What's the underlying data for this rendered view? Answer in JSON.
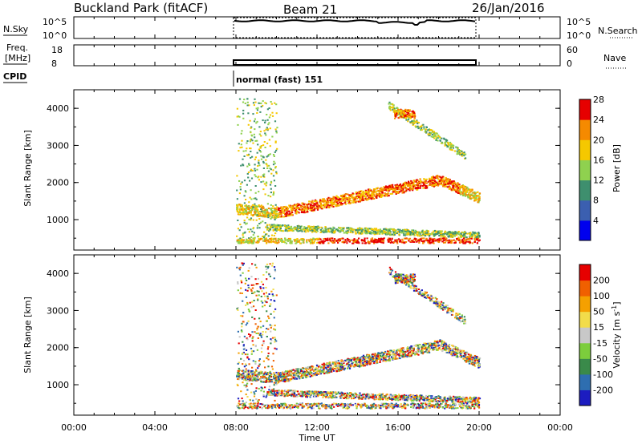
{
  "header": {
    "title_left": "Buckland Park (fitACF)",
    "title_center": "Beam 21",
    "title_right": "26/Jan/2016"
  },
  "panels": {
    "nsky": {
      "label": "N.Sky",
      "ticks_left": [
        "10^5",
        "10^0"
      ],
      "ticks_right": [
        "10^5",
        "10^0"
      ],
      "right_label": "N.Search"
    },
    "freq": {
      "label_line1": "Freq.",
      "label_line2": "[MHz]",
      "ticks_left": [
        "18",
        "8"
      ],
      "ticks_right": [
        "60",
        "0"
      ],
      "right_label": "Nave"
    },
    "cpid": {
      "label": "CPID",
      "value": "normal (fast) 151"
    }
  },
  "chart_data": [
    {
      "type": "heatmap",
      "name": "power",
      "ylabel": "Slant Range [km]",
      "y_ticks": [
        "1000",
        "2000",
        "3000",
        "4000"
      ],
      "ylim": [
        180,
        4500
      ],
      "colorbar_label": "Power [dB]",
      "colorbar_ticks": [
        "4",
        "8",
        "12",
        "16",
        "20",
        "24",
        "28"
      ],
      "colorbar_colors": [
        "#0000ee",
        "#3b5fb0",
        "#3e8f6e",
        "#8fd14f",
        "#f5c800",
        "#f58a00",
        "#e60000"
      ],
      "observation_window": [
        "08:00",
        "20:00"
      ]
    },
    {
      "type": "heatmap",
      "name": "velocity",
      "ylabel": "Slant Range [km]",
      "y_ticks": [
        "1000",
        "2000",
        "3000",
        "4000"
      ],
      "ylim": [
        180,
        4500
      ],
      "colorbar_label": "Velocity [m s",
      "colorbar_label_sup": "-1",
      "colorbar_label_end": "]",
      "colorbar_ticks": [
        "200",
        "100",
        "50",
        "15",
        "-15",
        "-50",
        "-100",
        "-200"
      ],
      "colorbar_colors": [
        "#1c1cc0",
        "#2e6eb0",
        "#3a8a4a",
        "#7ccd3c",
        "#c8c8c8",
        "#f2dc4a",
        "#f5a000",
        "#f06000",
        "#e60000"
      ],
      "observation_window": [
        "08:00",
        "20:00"
      ]
    }
  ],
  "xaxis": {
    "label": "Time UT",
    "ticks": [
      "00:00",
      "04:00",
      "08:00",
      "12:00",
      "16:00",
      "20:00",
      "00:00"
    ]
  }
}
